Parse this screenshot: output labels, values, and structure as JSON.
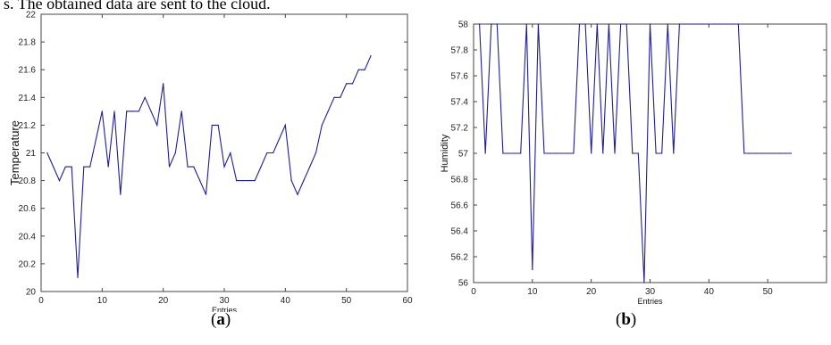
{
  "caption_fragment": "s. The obtained data are sent to the cloud.",
  "panel_labels": [
    {
      "open": "(",
      "letter": "a",
      "close": ")"
    },
    {
      "open": "(",
      "letter": "b",
      "close": ")"
    }
  ],
  "line_color": "#1f1f8f",
  "chart_data": [
    {
      "type": "line",
      "xlabel": "Entries",
      "ylabel": "Temperature",
      "xlim": [
        0,
        60
      ],
      "ylim": [
        20,
        22
      ],
      "xticks": [
        0,
        10,
        20,
        30,
        40,
        50,
        60
      ],
      "yticks": [
        20,
        20.2,
        20.4,
        20.6,
        20.8,
        21,
        21.2,
        21.4,
        21.6,
        21.8,
        22
      ],
      "grid": false,
      "series": [
        {
          "x": [
            1,
            2,
            3,
            4,
            5,
            6,
            7,
            8,
            9,
            10,
            11,
            12,
            13,
            14,
            15,
            16,
            17,
            18,
            19,
            20,
            21,
            22,
            23,
            24,
            25,
            26,
            27,
            28,
            29,
            30,
            31,
            32,
            33,
            34,
            35,
            36,
            37,
            38,
            39,
            40,
            41,
            42,
            43,
            44,
            45,
            46,
            47,
            48,
            49,
            50,
            51,
            52,
            53,
            54
          ],
          "y": [
            21.0,
            20.9,
            20.8,
            20.9,
            20.9,
            20.1,
            20.9,
            20.9,
            21.1,
            21.3,
            20.9,
            21.3,
            20.7,
            21.3,
            21.3,
            21.3,
            21.4,
            21.3,
            21.2,
            21.5,
            20.9,
            21.0,
            21.3,
            20.9,
            20.9,
            20.8,
            20.7,
            21.2,
            21.2,
            20.9,
            21.0,
            20.8,
            20.8,
            20.8,
            20.8,
            20.9,
            21.0,
            21.0,
            21.1,
            21.2,
            20.8,
            20.7,
            20.8,
            20.9,
            21.0,
            21.2,
            21.3,
            21.4,
            21.4,
            21.5,
            21.5,
            21.6,
            21.6,
            21.7
          ]
        }
      ]
    },
    {
      "type": "line",
      "xlabel": "Entries",
      "ylabel": "Humidity",
      "xlim": [
        0,
        60
      ],
      "ylim": [
        56,
        58
      ],
      "xticks": [
        0,
        10,
        20,
        30,
        40,
        50
      ],
      "xtick_labels": [
        "0",
        "10",
        "20",
        "30",
        "40",
        "50"
      ],
      "yticks": [
        56,
        56.2,
        56.4,
        56.6,
        56.8,
        57,
        57.2,
        57.4,
        57.6,
        57.8,
        58
      ],
      "grid": false,
      "series": [
        {
          "x": [
            1,
            2,
            3,
            4,
            5,
            6,
            7,
            8,
            9,
            10,
            11,
            12,
            13,
            14,
            15,
            16,
            17,
            18,
            19,
            20,
            21,
            22,
            23,
            24,
            25,
            26,
            27,
            28,
            29,
            30,
            31,
            32,
            33,
            34,
            35,
            36,
            37,
            38,
            39,
            40,
            41,
            42,
            43,
            44,
            45,
            46,
            47,
            48,
            49,
            50,
            51,
            52,
            53,
            54
          ],
          "y": [
            58,
            57,
            58,
            58,
            57,
            57,
            57,
            57,
            58,
            56.1,
            58,
            57,
            57,
            57,
            57,
            57,
            57,
            58,
            58,
            57,
            58,
            57,
            58,
            57,
            58,
            58,
            57,
            57,
            56,
            58,
            57,
            57,
            58,
            57,
            58,
            58,
            58,
            58,
            58,
            58,
            58,
            58,
            58,
            58,
            58,
            57,
            57,
            57,
            57,
            57,
            57,
            57,
            57,
            57
          ]
        }
      ]
    }
  ]
}
